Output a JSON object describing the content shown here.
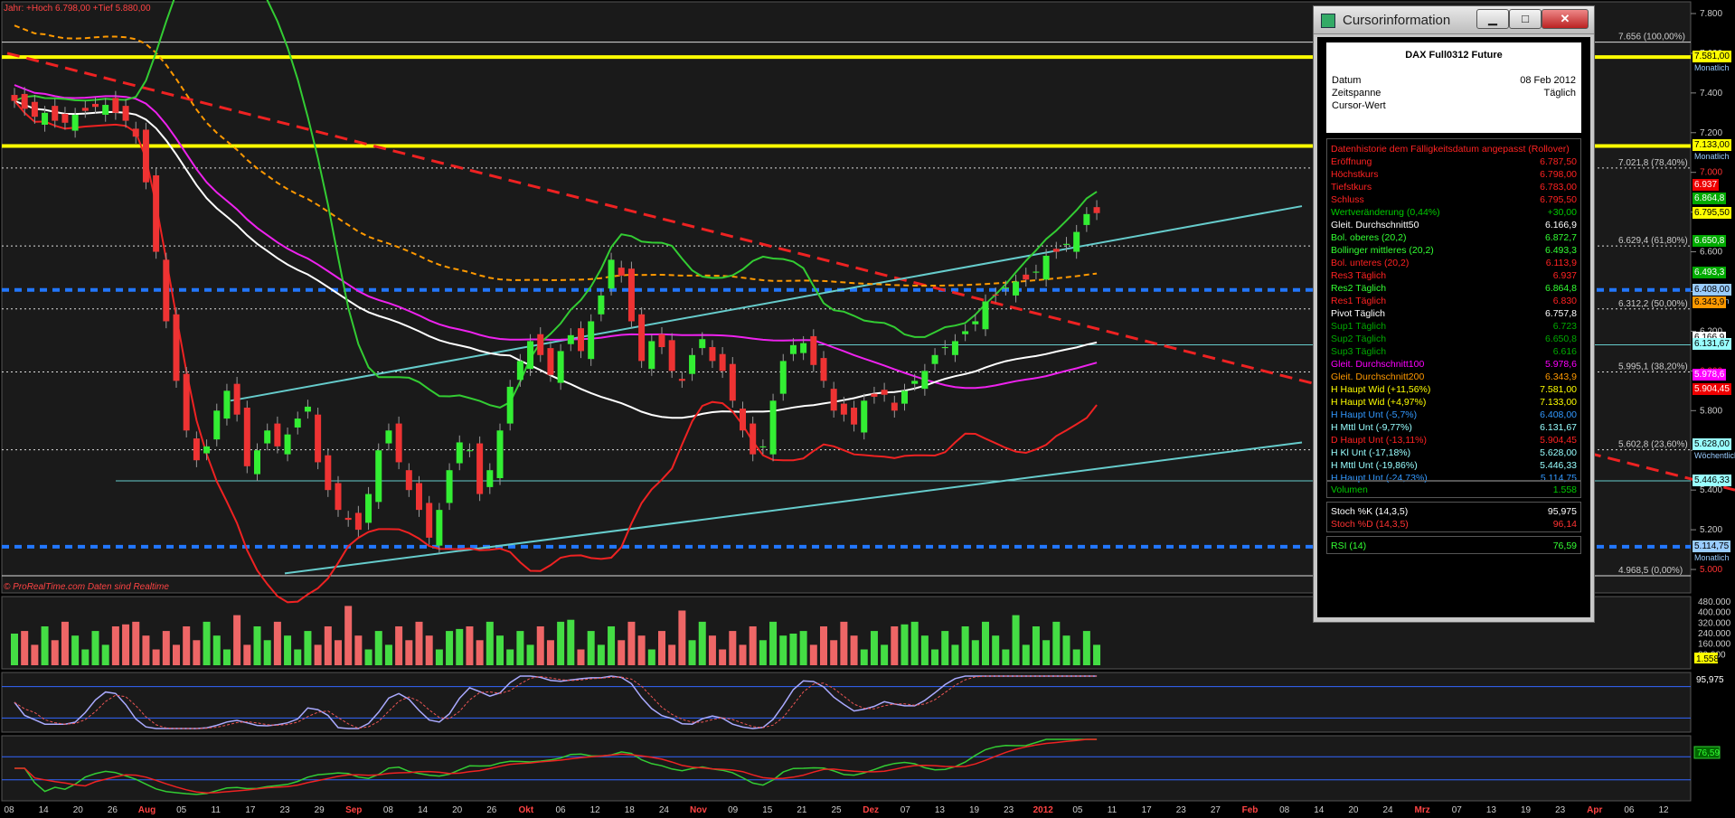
{
  "header": {
    "top_left": "Jahr: +Hoch 6.798,00 +Tief 5.880,00",
    "watermark": "© ProRealTime.com   Daten sind Realtime"
  },
  "fib_labels": [
    {
      "text": "7.656 (100,00%)",
      "price": 7656
    },
    {
      "text": "7.021,8 (78,40%)",
      "price": 7021.8
    },
    {
      "text": "6.629,4 (61,80%)",
      "price": 6629.4
    },
    {
      "text": "6.312,2 (50,00%)",
      "price": 6312.2
    },
    {
      "text": "5.995,1 (38,20%)",
      "price": 5995.1
    },
    {
      "text": "5.602,8 (23,60%)",
      "price": 5602.8
    },
    {
      "text": "4.968,5 (0,00%)",
      "price": 4968.5
    }
  ],
  "price_axis": [
    {
      "text": "7.800",
      "price": 7800,
      "color": "#ccc"
    },
    {
      "text": "7.600",
      "price": 7600,
      "color": "#ccc"
    },
    {
      "text": "7.400",
      "price": 7400,
      "color": "#ccc"
    },
    {
      "text": "7.200",
      "price": 7200,
      "color": "#ccc"
    },
    {
      "text": "7.000",
      "price": 7000,
      "color": "#f33"
    },
    {
      "text": "6.800",
      "price": 6800,
      "color": "#ccc"
    },
    {
      "text": "6.600",
      "price": 6600,
      "color": "#ccc"
    },
    {
      "text": "6.400",
      "price": 6400,
      "color": "#ccc"
    },
    {
      "text": "6.200",
      "price": 6200,
      "color": "#ccc"
    },
    {
      "text": "6.000",
      "price": 6000,
      "color": "#f33"
    },
    {
      "text": "5.800",
      "price": 5800,
      "color": "#ccc"
    },
    {
      "text": "5.600",
      "price": 5600,
      "color": "#ccc"
    },
    {
      "text": "5.400",
      "price": 5400,
      "color": "#ccc"
    },
    {
      "text": "5.200",
      "price": 5200,
      "color": "#ccc"
    },
    {
      "text": "5.000",
      "price": 5000,
      "color": "#f33"
    }
  ],
  "price_tags": [
    {
      "text": "7.581,00",
      "sub": "Monatlich",
      "price": 7581,
      "bg": "#ff0",
      "fg": "#000"
    },
    {
      "text": "7.133,00",
      "sub": "Monatlich",
      "price": 7133,
      "bg": "#ff0",
      "fg": "#000"
    },
    {
      "text": "6.937",
      "sub": "",
      "price": 6937,
      "bg": "#e00",
      "fg": "#fff"
    },
    {
      "text": "6.864,8",
      "sub": "",
      "price": 6864.8,
      "bg": "#0a0",
      "fg": "#fff"
    },
    {
      "text": "6.795,50",
      "sub": "",
      "price": 6795.5,
      "bg": "#ff0",
      "fg": "#000"
    },
    {
      "text": "6.650,8",
      "sub": "",
      "price": 6650.8,
      "bg": "#0a0",
      "fg": "#fff"
    },
    {
      "text": "6.493,3",
      "sub": "",
      "price": 6493.3,
      "bg": "#0a0",
      "fg": "#fff"
    },
    {
      "text": "6.408,00",
      "sub": "Monatlich",
      "price": 6408,
      "bg": "#9cf",
      "fg": "#000"
    },
    {
      "text": "6.343,9",
      "sub": "",
      "price": 6343.9,
      "bg": "#f90",
      "fg": "#000"
    },
    {
      "text": "6.166,9",
      "sub": "",
      "price": 6166.9,
      "bg": "#fff",
      "fg": "#000"
    },
    {
      "text": "6.131,67",
      "sub": "",
      "price": 6131.67,
      "bg": "#9ff",
      "fg": "#000"
    },
    {
      "text": "5.978,6",
      "sub": "",
      "price": 5978.6,
      "bg": "#f0f",
      "fg": "#fff"
    },
    {
      "text": "5.904,45",
      "sub": "",
      "price": 5904.45,
      "bg": "#e00",
      "fg": "#fff"
    },
    {
      "text": "5.628,00",
      "sub": "Wöchentlich",
      "price": 5628,
      "bg": "#9ff",
      "fg": "#000"
    },
    {
      "text": "5.446,33",
      "sub": "",
      "price": 5446.33,
      "bg": "#9ff",
      "fg": "#000"
    },
    {
      "text": "5.114,75",
      "sub": "Monatlich",
      "price": 5114.75,
      "bg": "#9cf",
      "fg": "#000"
    }
  ],
  "volume_axis": [
    {
      "text": "480.000",
      "v": 480000
    },
    {
      "text": "400.000",
      "v": 400000
    },
    {
      "text": "320.000",
      "v": 320000
    },
    {
      "text": "240.000",
      "v": 240000
    },
    {
      "text": "160.000",
      "v": 160000
    },
    {
      "text": "80.000",
      "v": 80000
    }
  ],
  "volume_tag": "1.558",
  "stoch_tag": "95,975",
  "rsi_tag": "76,59",
  "x_labels": [
    {
      "text": "08",
      "bold": false
    },
    {
      "text": "14",
      "bold": false
    },
    {
      "text": "20",
      "bold": false
    },
    {
      "text": "26",
      "bold": false
    },
    {
      "text": "Aug",
      "bold": true
    },
    {
      "text": "05",
      "bold": false
    },
    {
      "text": "11",
      "bold": false
    },
    {
      "text": "17",
      "bold": false
    },
    {
      "text": "23",
      "bold": false
    },
    {
      "text": "29",
      "bold": false
    },
    {
      "text": "Sep",
      "bold": true
    },
    {
      "text": "08",
      "bold": false
    },
    {
      "text": "14",
      "bold": false
    },
    {
      "text": "20",
      "bold": false
    },
    {
      "text": "26",
      "bold": false
    },
    {
      "text": "Okt",
      "bold": true
    },
    {
      "text": "06",
      "bold": false
    },
    {
      "text": "12",
      "bold": false
    },
    {
      "text": "18",
      "bold": false
    },
    {
      "text": "24",
      "bold": false
    },
    {
      "text": "Nov",
      "bold": true
    },
    {
      "text": "09",
      "bold": false
    },
    {
      "text": "15",
      "bold": false
    },
    {
      "text": "21",
      "bold": false
    },
    {
      "text": "25",
      "bold": false
    },
    {
      "text": "Dez",
      "bold": true
    },
    {
      "text": "07",
      "bold": false
    },
    {
      "text": "13",
      "bold": false
    },
    {
      "text": "19",
      "bold": false
    },
    {
      "text": "23",
      "bold": false
    },
    {
      "text": "2012",
      "bold": true
    },
    {
      "text": "05",
      "bold": false
    },
    {
      "text": "11",
      "bold": false
    },
    {
      "text": "17",
      "bold": false
    },
    {
      "text": "23",
      "bold": false
    },
    {
      "text": "27",
      "bold": false
    },
    {
      "text": "Feb",
      "bold": true
    },
    {
      "text": "08",
      "bold": false
    },
    {
      "text": "14",
      "bold": false
    },
    {
      "text": "20",
      "bold": false
    },
    {
      "text": "24",
      "bold": false
    },
    {
      "text": "Mrz",
      "bold": true
    },
    {
      "text": "07",
      "bold": false
    },
    {
      "text": "13",
      "bold": false
    },
    {
      "text": "19",
      "bold": false
    },
    {
      "text": "23",
      "bold": false
    },
    {
      "text": "Apr",
      "bold": true
    },
    {
      "text": "06",
      "bold": false
    },
    {
      "text": "12",
      "bold": false
    }
  ],
  "cursor_window": {
    "title": "Cursorinformation",
    "btn_min": "▁",
    "btn_max": "□",
    "btn_close": "✕",
    "instrument": "DAX Full0312 Future",
    "datum_label": "Datum",
    "datum_value": "08 Feb 2012",
    "zeitspanne_label": "Zeitspanne",
    "zeitspanne_value": "Täglich",
    "cursor_label": "Cursor-Wert",
    "cursor_value": "",
    "rows": [
      {
        "label": "Datenhistorie dem Fälligkeitsdatum angepasst (Rollover)",
        "value": "",
        "color": "#f22"
      },
      {
        "label": "Eröffnung",
        "value": "6.787,50",
        "color": "#f22"
      },
      {
        "label": "Höchstkurs",
        "value": "6.798,00",
        "color": "#f22"
      },
      {
        "label": "Tiefstkurs",
        "value": "6.783,00",
        "color": "#f22"
      },
      {
        "label": "Schluss",
        "value": "6.795,50",
        "color": "#f22"
      },
      {
        "label": "Wertveränderung (0,44%)",
        "value": "+30,00",
        "color": "#0c0"
      },
      {
        "label": "Gleit. Durchschnitt50",
        "value": "6.166,9",
        "color": "#fff"
      },
      {
        "label": "Bol. oberes (20,2)",
        "value": "6.872,7",
        "color": "#3f3"
      },
      {
        "label": "Bollinger mittleres (20,2)",
        "value": "6.493,3",
        "color": "#3f3"
      },
      {
        "label": "Bol. unteres (20,2)",
        "value": "6.113,9",
        "color": "#f22"
      },
      {
        "label": "Res3 Täglich",
        "value": "6.937",
        "color": "#f22"
      },
      {
        "label": "Res2 Täglich",
        "value": "6.864,8",
        "color": "#3f3"
      },
      {
        "label": "Res1 Täglich",
        "value": "6.830",
        "color": "#f22"
      },
      {
        "label": "Pivot Täglich",
        "value": "6.757,8",
        "color": "#fff"
      },
      {
        "label": "Sup1 Täglich",
        "value": "6.723",
        "color": "#0a0"
      },
      {
        "label": "Sup2 Täglich",
        "value": "6.650,8",
        "color": "#0a0"
      },
      {
        "label": "Sup3 Täglich",
        "value": "6.616",
        "color": "#0a0"
      },
      {
        "label": "Gleit. Durchschnitt100",
        "value": "5.978,6",
        "color": "#f0f"
      },
      {
        "label": "Gleit. Durchschnitt200",
        "value": "6.343,9",
        "color": "#f90"
      },
      {
        "label": "H Haupt Wid (+11,56%)",
        "value": "7.581,00",
        "color": "#ff0"
      },
      {
        "label": "H Haupt Wid (+4,97%)",
        "value": "7.133,00",
        "color": "#ff0"
      },
      {
        "label": "H Haupt Unt (-5,7%)",
        "value": "6.408,00",
        "color": "#39f"
      },
      {
        "label": "H Mttl Unt (-9,77%)",
        "value": "6.131,67",
        "color": "#9ff"
      },
      {
        "label": "D Haupt Unt (-13,11%)",
        "value": "5.904,45",
        "color": "#f22"
      },
      {
        "label": "H Kl Unt (-17,18%)",
        "value": "5.628,00",
        "color": "#9ff"
      },
      {
        "label": "H Mttl Unt (-19,86%)",
        "value": "5.446,33",
        "color": "#9ff"
      },
      {
        "label": "H Haupt Unt (-24,73%)",
        "value": "5.114,75",
        "color": "#39f"
      }
    ],
    "volume": {
      "label": "Volumen",
      "value": "1.558",
      "color": "#0c0"
    },
    "stoch_k": {
      "label": "Stoch %K (14,3,5)",
      "value": "95,975",
      "color": "#fff"
    },
    "stoch_d": {
      "label": "Stoch %D (14,3,5)",
      "value": "96,14",
      "color": "#f33"
    },
    "rsi": {
      "label": "RSI (14)",
      "value": "76,59",
      "color": "#3f3"
    }
  },
  "chart_data": {
    "type": "candlestick",
    "instrument": "DAX Full0312 Future",
    "timeframe": "Täglich",
    "ylim": [
      4900,
      7850
    ],
    "x_start": "2011-07-08",
    "x_end": "2012-04-12",
    "closes": [
      7360,
      7320,
      7280,
      7300,
      7260,
      7250,
      7290,
      7310,
      7330,
      7340,
      7300,
      7260,
      7180,
      6950,
      6600,
      6250,
      5950,
      5700,
      5550,
      5620,
      5800,
      5900,
      5780,
      5520,
      5600,
      5700,
      5620,
      5680,
      5760,
      5820,
      5540,
      5400,
      5300,
      5250,
      5200,
      5380,
      5600,
      5700,
      5540,
      5400,
      5300,
      5160,
      5300,
      5500,
      5640,
      5600,
      5380,
      5500,
      5700,
      5920,
      6050,
      6150,
      6080,
      5980,
      6100,
      6180,
      6100,
      6250,
      6380,
      6560,
      6480,
      6250,
      6050,
      6150,
      6120,
      6000,
      5950,
      6080,
      6160,
      6050,
      6000,
      5850,
      5700,
      5580,
      5620,
      5850,
      6050,
      6130,
      6140,
      6030,
      5950,
      5800,
      5780,
      5730,
      5850,
      5870,
      5880,
      5800,
      5900,
      5950,
      6000,
      6080,
      6120,
      6150,
      6200,
      6250,
      6350,
      6380,
      6420,
      6450,
      6460,
      6500,
      6580,
      6600,
      6640,
      6700,
      6790,
      6795
    ],
    "volume_approx": "approx. 80.000 – 480.000 per bar",
    "indicators": {
      "Gleit. Durchschnitt50": 6166.9,
      "Gleit. Durchschnitt100": 5978.6,
      "Gleit. Durchschnitt200": 6343.9,
      "Bol. oberes (20,2)": 6872.7,
      "Bollinger mittleres (20,2)": 6493.3,
      "Bol. unteres (20,2)": 6113.9,
      "Stoch %K (14,3,5)": 95.975,
      "Stoch %D (14,3,5)": 96.14,
      "RSI (14)": 76.59
    }
  }
}
